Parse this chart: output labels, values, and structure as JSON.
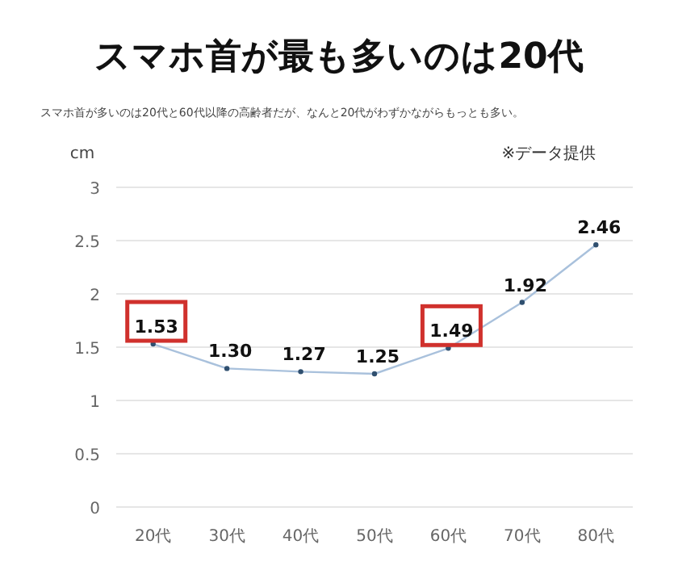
{
  "chart_data": {
    "type": "line",
    "title": "スマホ首が最も多いのは20代",
    "subtitle": "スマホ首が多いのは20代と60代以降の高齢者だが、なんと20代がわずかながらもっとも多い。",
    "ylabel": "cm",
    "annotations": [
      "※データ提供"
    ],
    "categories": [
      "20代",
      "30代",
      "40代",
      "50代",
      "60代",
      "70代",
      "80代"
    ],
    "series": [
      {
        "color": "#a9c1dc",
        "values": [
          1.53,
          1.3,
          1.27,
          1.25,
          1.49,
          1.92,
          2.46
        ],
        "value_labels": [
          "1.53",
          "1.30",
          "1.27",
          "1.25",
          "1.49",
          "1.92",
          "2.46"
        ]
      }
    ],
    "ylim": [
      0,
      3
    ],
    "yticks": [
      0,
      0.5,
      1,
      1.5,
      2,
      2.5,
      3
    ],
    "grid": "y",
    "marker": "circle",
    "line_style": "solid"
  }
}
